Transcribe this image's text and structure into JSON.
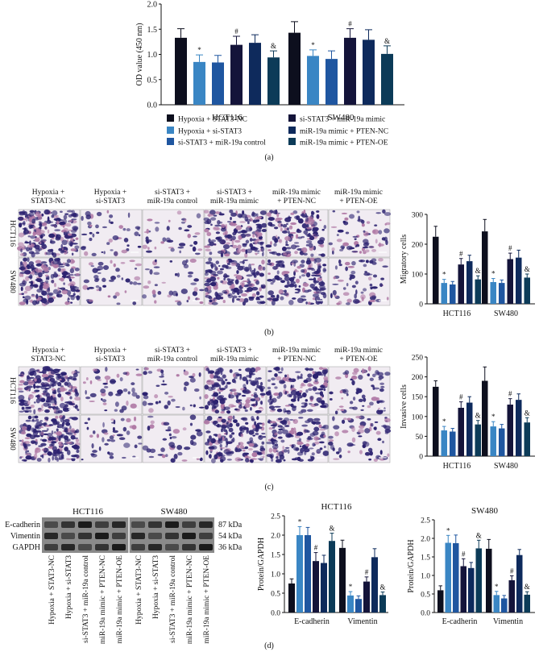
{
  "colors": {
    "series": [
      "#0d0f1e",
      "#3a86c4",
      "#1f56a0",
      "#14143a",
      "#0e2a5c",
      "#0c3b58"
    ],
    "micro_bg": "#f1ecf2",
    "micro_cell": "#2c2270",
    "micro_pink": "#b07aa6",
    "blot_bg": "#8a8a8a",
    "blot_band": "#151515"
  },
  "legend": [
    "Hypoxia + STAT3-NC",
    "Hypoxia + si-STAT3",
    "si-STAT3 + miR-19a control",
    "si-STAT3 + miR-19a mimic",
    "miR-19a mimic + PTEN-NC",
    "miR-19a mimic + PTEN-OE"
  ],
  "panel_labels": {
    "a": "(a)",
    "b": "(b)",
    "c": "(c)",
    "d": "(d)"
  },
  "micro_headers": [
    [
      "Hypoxia +",
      "STAT3-NC"
    ],
    [
      "Hypoxia +",
      "si-STAT3"
    ],
    [
      "si-STAT3 +",
      "miR-19a control"
    ],
    [
      "si-STAT3 +",
      "miR-19a mimic"
    ],
    [
      "miR-19a mimic",
      "+ PTEN-NC"
    ],
    [
      "miR-19a mimic",
      "+ PTEN-OE"
    ]
  ],
  "micro_rows": [
    "HCT116",
    "SW480"
  ],
  "blot": {
    "groups": [
      "HCT116",
      "SW480"
    ],
    "proteins": [
      "E-cadherin",
      "Vimentin",
      "GAPDH"
    ],
    "sizes": [
      "87 kDa",
      "54 kDa",
      "36 kDa"
    ],
    "lanes": [
      "Hypoxia + STAT3-NC",
      "Hypoxia + si-STAT3",
      "si-STAT3 + miR-19a control",
      "miR-19a mimic + PTEN-NC",
      "miR-19a mimic + PTEN-OE",
      "Hypoxia + STAT3-NC",
      "Hypoxia + si-STAT3",
      "si-STAT3 + miR-19a control",
      "miR-19a mimic + PTEN-NC",
      "miR-19a mimic + PTEN-OE"
    ]
  },
  "chart_data": [
    {
      "id": "a",
      "type": "bar",
      "title": "",
      "ylabel": "OD value (450 nm)",
      "ylim": [
        0,
        2.0
      ],
      "yticks": [
        "0.0",
        "0.5",
        "1.0",
        "1.5",
        "2.0"
      ],
      "ytick_values": [
        0,
        0.5,
        1.0,
        1.5,
        2.0
      ],
      "categories": [
        "HCT116",
        "SW480"
      ],
      "values": [
        [
          1.33,
          0.85,
          0.84,
          1.19,
          1.23,
          0.94
        ],
        [
          1.43,
          0.97,
          0.91,
          1.33,
          1.29,
          1.01
        ]
      ],
      "errors": [
        [
          0.18,
          0.14,
          0.14,
          0.17,
          0.16,
          0.13
        ],
        [
          0.22,
          0.12,
          0.16,
          0.18,
          0.2,
          0.16
        ]
      ],
      "marks": [
        [
          "",
          "*",
          "",
          "#",
          "",
          "&"
        ],
        [
          "",
          "*",
          "",
          "#",
          "",
          "&"
        ]
      ]
    },
    {
      "id": "b",
      "type": "bar",
      "title": "",
      "ylabel": "Migratory cells",
      "ylim": [
        0,
        300
      ],
      "yticks": [
        "0",
        "100",
        "200",
        "300"
      ],
      "ytick_values": [
        0,
        100,
        200,
        300
      ],
      "categories": [
        "HCT116",
        "SW480"
      ],
      "values": [
        [
          225,
          70,
          65,
          132,
          143,
          82
        ],
        [
          243,
          73,
          70,
          150,
          155,
          88
        ]
      ],
      "errors": [
        [
          35,
          12,
          10,
          20,
          20,
          12
        ],
        [
          40,
          12,
          10,
          20,
          25,
          12
        ]
      ],
      "marks": [
        [
          "",
          "*",
          "",
          "#",
          "",
          "&"
        ],
        [
          "",
          "*",
          "",
          "#",
          "",
          "&"
        ]
      ]
    },
    {
      "id": "c",
      "type": "bar",
      "title": "",
      "ylabel": "Invasive cells",
      "ylim": [
        0,
        250
      ],
      "yticks": [
        "0",
        "50",
        "100",
        "150",
        "200",
        "250"
      ],
      "ytick_values": [
        0,
        50,
        100,
        150,
        200,
        250
      ],
      "categories": [
        "HCT116",
        "SW480"
      ],
      "values": [
        [
          175,
          65,
          62,
          122,
          135,
          80
        ],
        [
          190,
          75,
          70,
          130,
          142,
          85
        ]
      ],
      "errors": [
        [
          15,
          10,
          8,
          15,
          15,
          10
        ],
        [
          35,
          12,
          10,
          15,
          15,
          12
        ]
      ],
      "marks": [
        [
          "",
          "*",
          "",
          "#",
          "",
          "&"
        ],
        [
          "",
          "*",
          "",
          "#",
          "",
          "&"
        ]
      ]
    },
    {
      "id": "d1",
      "type": "bar",
      "title": "HCT116",
      "ylabel": "Protein/GAPDH",
      "ylim": [
        0,
        2.5
      ],
      "yticks": [
        "0.0",
        "0.5",
        "1.0",
        "1.5",
        "2.0",
        "2.5"
      ],
      "ytick_values": [
        0,
        0.5,
        1.0,
        1.5,
        2.0,
        2.5
      ],
      "categories": [
        "E-cadherin",
        "Vimentin"
      ],
      "values": [
        [
          0.75,
          2.0,
          2.0,
          1.33,
          1.28,
          1.85
        ],
        [
          1.67,
          0.44,
          0.35,
          0.8,
          1.43,
          0.45
        ]
      ],
      "errors": [
        [
          0.12,
          0.22,
          0.2,
          0.22,
          0.2,
          0.2
        ],
        [
          0.2,
          0.1,
          0.08,
          0.12,
          0.22,
          0.08
        ]
      ],
      "marks": [
        [
          "",
          "*",
          "",
          "#",
          "",
          "&"
        ],
        [
          "",
          "*",
          "",
          "#",
          "",
          "&"
        ]
      ]
    },
    {
      "id": "d2",
      "type": "bar",
      "title": "SW480",
      "ylabel": "Protein/GAPDH",
      "ylim": [
        0,
        2.5
      ],
      "yticks": [
        "0.0",
        "0.5",
        "1.0",
        "1.5",
        "2.0",
        "2.5"
      ],
      "ytick_values": [
        0,
        0.5,
        1.0,
        1.5,
        2.0,
        2.5
      ],
      "categories": [
        "E-cadherin",
        "Vimentin"
      ],
      "values": [
        [
          0.6,
          1.88,
          1.87,
          1.25,
          1.2,
          1.73
        ],
        [
          1.72,
          0.47,
          0.38,
          0.87,
          1.55,
          0.48
        ]
      ],
      "errors": [
        [
          0.12,
          0.2,
          0.22,
          0.2,
          0.15,
          0.22
        ],
        [
          0.25,
          0.1,
          0.08,
          0.12,
          0.15,
          0.08
        ]
      ],
      "marks": [
        [
          "",
          "*",
          "",
          "#",
          "",
          "&"
        ],
        [
          "",
          "*",
          "",
          "#",
          "",
          "&"
        ]
      ]
    }
  ]
}
